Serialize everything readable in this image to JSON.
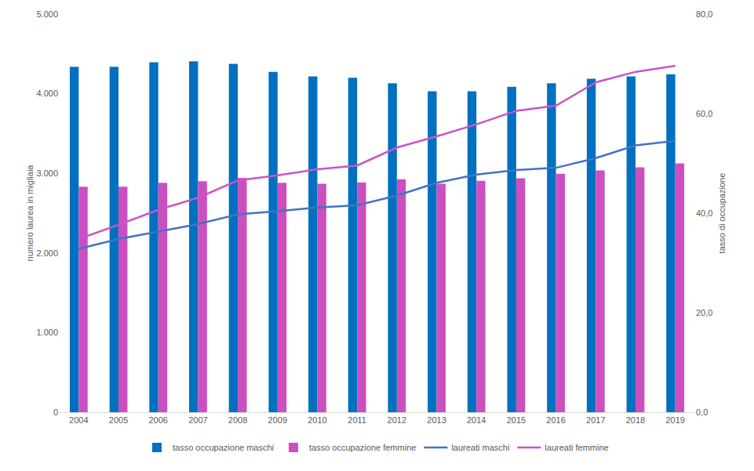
{
  "chart_data": {
    "type": "bar",
    "y_label": "numero laurea in migliaia",
    "y2_label": "tasso di occupazione",
    "categories": [
      "2004",
      "2005",
      "2006",
      "2007",
      "2008",
      "2009",
      "2010",
      "2011",
      "2012",
      "2013",
      "2014",
      "2015",
      "2016",
      "2017",
      "2018",
      "2019"
    ],
    "ylim": [
      0,
      5000
    ],
    "yticks": [
      0,
      {
        "value": 1000,
        "label": "1.000"
      },
      {
        "value": 2000,
        "label": "2.000"
      },
      {
        "value": 3000,
        "label": "3.000"
      },
      {
        "value": 4000,
        "label": "4.000"
      },
      {
        "value": 5000,
        "label": "5.000"
      }
    ],
    "y2lim": [
      0,
      80
    ],
    "y2ticks": [
      {
        "value": 0,
        "label": "0,0"
      },
      {
        "value": 20,
        "label": "20,0"
      },
      {
        "value": 40,
        "label": "40,0"
      },
      {
        "value": 60,
        "label": "60,0"
      },
      {
        "value": 80,
        "label": "80,0"
      }
    ],
    "grid": false,
    "legend": "bottom",
    "series": [
      {
        "name": "tasso occupazione maschi",
        "type": "bar",
        "axis": "y2",
        "color": "#0070c0",
        "values": [
          69.4,
          69.4,
          70.3,
          70.5,
          70.0,
          68.4,
          67.5,
          67.2,
          66.1,
          64.5,
          64.5,
          65.4,
          66.1,
          67.0,
          67.5,
          67.9
        ]
      },
      {
        "name": "tasso occupazione femmine",
        "type": "bar",
        "axis": "y2",
        "color": "#cc4fc0",
        "values": [
          45.3,
          45.3,
          46.1,
          46.4,
          47.1,
          46.1,
          45.9,
          46.2,
          46.8,
          45.9,
          46.5,
          47.0,
          47.9,
          48.6,
          49.2,
          50.0
        ]
      },
      {
        "name": "laureati maschi",
        "type": "line",
        "color": "#4472c4",
        "values": [
          2053,
          2175,
          2269,
          2363,
          2486,
          2524,
          2571,
          2599,
          2721,
          2881,
          2985,
          3041,
          3070,
          3192,
          3352,
          3409
        ]
      },
      {
        "name": "laureati femmine",
        "type": "line",
        "color": "#c855c8",
        "values": [
          2175,
          2354,
          2542,
          2693,
          2910,
          2975,
          3051,
          3098,
          3324,
          3465,
          3616,
          3785,
          3851,
          4143,
          4275,
          4350
        ]
      }
    ]
  }
}
